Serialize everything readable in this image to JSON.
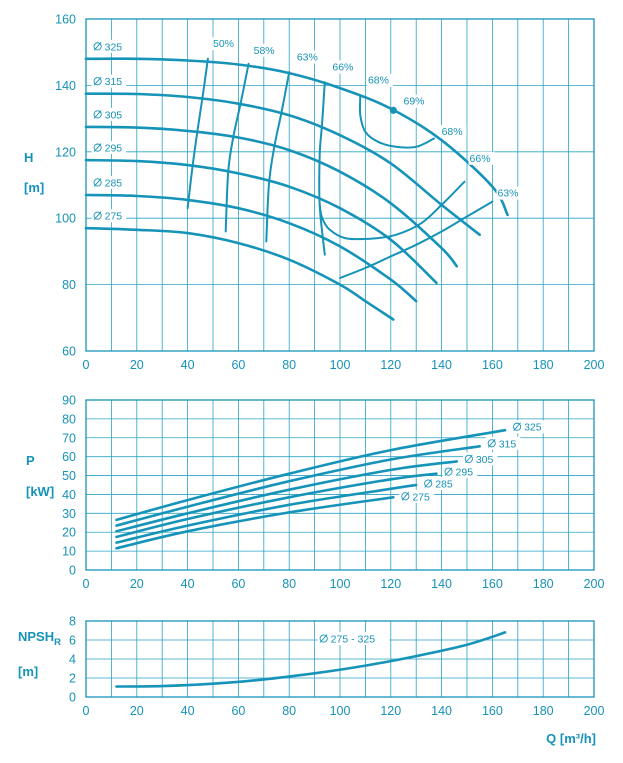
{
  "chart_data": [
    {
      "type": "line",
      "id": "head",
      "ylabel": "H",
      "yunit": "[m]",
      "xlim": [
        0,
        200
      ],
      "ylim": [
        60,
        160
      ],
      "xticks": [
        0,
        20,
        40,
        60,
        80,
        100,
        120,
        140,
        160,
        180,
        200
      ],
      "yticks": [
        60,
        80,
        100,
        120,
        140,
        160
      ],
      "grid": true,
      "series": [
        {
          "name": "325",
          "x": [
            0,
            20,
            40,
            60,
            80,
            100,
            120,
            140,
            160,
            166
          ],
          "y": [
            148,
            148,
            147.5,
            146.3,
            143.7,
            139.2,
            133,
            123.5,
            109.5,
            101
          ]
        },
        {
          "name": "315",
          "x": [
            0,
            20,
            40,
            60,
            80,
            100,
            120,
            140,
            155
          ],
          "y": [
            137.5,
            137.4,
            136.5,
            134.5,
            131,
            125,
            116.5,
            104,
            95
          ]
        },
        {
          "name": "305",
          "x": [
            0,
            20,
            40,
            60,
            80,
            100,
            120,
            140,
            146
          ],
          "y": [
            127.5,
            127.3,
            126.3,
            124.3,
            120.5,
            114,
            104.5,
            91,
            85.5
          ]
        },
        {
          "name": "295",
          "x": [
            0,
            20,
            40,
            60,
            80,
            100,
            120,
            138
          ],
          "y": [
            117.5,
            117.2,
            116,
            113.5,
            109.5,
            103,
            93.5,
            80.5
          ]
        },
        {
          "name": "285",
          "x": [
            0,
            20,
            40,
            60,
            80,
            100,
            120,
            130
          ],
          "y": [
            107,
            106.7,
            105.5,
            103,
            98.5,
            91.5,
            81.5,
            75
          ]
        },
        {
          "name": "275",
          "x": [
            0,
            20,
            40,
            60,
            80,
            100,
            110,
            121
          ],
          "y": [
            97,
            96.5,
            95.5,
            92.5,
            87.5,
            80,
            75,
            69.5
          ]
        }
      ],
      "efficiency_lines": [
        {
          "label": "50%",
          "x": [
            48,
            46,
            44,
            42,
            40
          ],
          "y": [
            148,
            137,
            127,
            116,
            103
          ]
        },
        {
          "label": "58%",
          "x": [
            64,
            61,
            58,
            56,
            55
          ],
          "y": [
            146.5,
            135,
            124.5,
            114,
            96
          ]
        },
        {
          "label": "63%",
          "x": [
            80,
            77,
            74,
            72,
            71
          ],
          "y": [
            144,
            132,
            121,
            110,
            93
          ]
        },
        {
          "label": "66%",
          "x": [
            94,
            93,
            92,
            92,
            94
          ],
          "y": [
            141,
            129,
            119,
            104,
            89
          ]
        },
        {
          "label": "68%",
          "x": [
            108,
            108,
            110,
            115,
            122,
            130,
            137
          ],
          "y": [
            137,
            131,
            126,
            123,
            121.5,
            121.5,
            124
          ]
        },
        {
          "label": "66%",
          "x": [
            92,
            93,
            96,
            102,
            112,
            122,
            132,
            140,
            149
          ],
          "y": [
            104,
            100,
            96.5,
            94,
            93.8,
            95,
            98.5,
            104,
            111
          ]
        },
        {
          "label": "63%",
          "x": [
            100,
            110,
            120,
            130,
            140,
            150,
            160
          ],
          "y": [
            82,
            85,
            88.5,
            92,
            96,
            100.5,
            105
          ]
        }
      ],
      "efficiency_labels_shown": [
        "50%",
        "58%",
        "63%",
        "66%",
        "68%",
        "69%",
        "68%",
        "66%",
        "63%"
      ],
      "best_efficiency_point": {
        "label": "69%",
        "x": 121,
        "y": 132.5
      },
      "curve_labels": [
        "325",
        "315",
        "305",
        "295",
        "285",
        "275"
      ]
    },
    {
      "type": "line",
      "id": "power",
      "ylabel": "P",
      "yunit": "[kW]",
      "xlim": [
        0,
        200
      ],
      "ylim": [
        0,
        90
      ],
      "xticks": [
        0,
        20,
        40,
        60,
        80,
        100,
        120,
        140,
        160,
        180,
        200
      ],
      "yticks": [
        0,
        10,
        20,
        30,
        40,
        50,
        60,
        70,
        80,
        90
      ],
      "grid": true,
      "series": [
        {
          "name": "325",
          "x": [
            12,
            40,
            80,
            120,
            165
          ],
          "y": [
            26.5,
            37,
            51,
            63.5,
            74
          ]
        },
        {
          "name": "315",
          "x": [
            12,
            40,
            80,
            120,
            155
          ],
          "y": [
            23.5,
            33.5,
            47,
            58.5,
            65.5
          ]
        },
        {
          "name": "305",
          "x": [
            12,
            40,
            80,
            120,
            146
          ],
          "y": [
            20.5,
            30,
            42.5,
            53,
            57.5
          ]
        },
        {
          "name": "295",
          "x": [
            12,
            40,
            80,
            120,
            138
          ],
          "y": [
            17.5,
            27,
            38.5,
            48,
            51
          ]
        },
        {
          "name": "285",
          "x": [
            12,
            40,
            80,
            120,
            130
          ],
          "y": [
            14.5,
            23.5,
            34.5,
            43,
            45
          ]
        },
        {
          "name": "275",
          "x": [
            12,
            40,
            80,
            121
          ],
          "y": [
            11.5,
            20.5,
            30.5,
            38.5
          ]
        }
      ],
      "curve_labels": [
        "325",
        "315",
        "305",
        "295",
        "285",
        "275"
      ]
    },
    {
      "type": "line",
      "id": "npsh",
      "ylabel": "NPSH",
      "ylabel_sub": "R",
      "yunit": "[m]",
      "xlabel": "Q [m³/h]",
      "xlim": [
        0,
        200
      ],
      "ylim": [
        0,
        8
      ],
      "xticks": [
        0,
        20,
        40,
        60,
        80,
        100,
        120,
        140,
        160,
        180,
        200
      ],
      "yticks": [
        0,
        2,
        4,
        6,
        8
      ],
      "grid": true,
      "series": [
        {
          "name": "275 - 325",
          "x": [
            12,
            30,
            50,
            70,
            90,
            110,
            130,
            150,
            165
          ],
          "y": [
            1.1,
            1.15,
            1.4,
            1.85,
            2.5,
            3.3,
            4.3,
            5.5,
            6.8
          ]
        }
      ],
      "curve_labels": [
        "275 - 325"
      ]
    }
  ]
}
